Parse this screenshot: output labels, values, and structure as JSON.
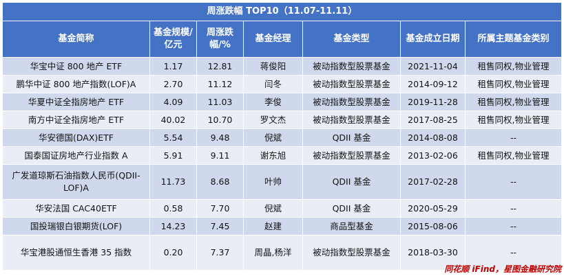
{
  "table": {
    "title": "周涨跌幅 TOP10（11.07-11.11）",
    "headers": [
      "基金简称",
      "基金规模/亿元",
      "周涨跌幅/%",
      "基金经理",
      "基金类型",
      "基金成立日期",
      "所属主题基金类别"
    ],
    "rows": [
      [
        "华宝中证 800 地产 ETF",
        "1.17",
        "12.81",
        "蒋俊阳",
        "被动指数型股票基金",
        "2021-11-04",
        "租售同权,物业管理"
      ],
      [
        "鹏华中证 800 地产指数(LOF)A",
        "2.70",
        "11.12",
        "闫冬",
        "被动指数型股票基金",
        "2014-09-12",
        "租售同权,物业管理"
      ],
      [
        "华夏中证全指房地产 ETF",
        "4.09",
        "11.03",
        "李俊",
        "被动指数型股票基金",
        "2019-11-28",
        "租售同权,物业管理"
      ],
      [
        "南方中证全指房地产 ETF",
        "40.02",
        "10.70",
        "罗文杰",
        "被动指数型股票基金",
        "2017-08-25",
        "租售同权,物业管理"
      ],
      [
        "华安德国(DAX)ETF",
        "5.54",
        "9.48",
        "倪斌",
        "QDII 基金",
        "2014-08-08",
        "--"
      ],
      [
        "国泰国证房地产行业指数 A",
        "5.91",
        "9.11",
        "谢东旭",
        "被动指数型股票基金",
        "2013-02-06",
        "租售同权,物业管理"
      ],
      [
        "广发道琼斯石油指数人民币(QDII-LOF)A",
        "11.73",
        "8.68",
        "叶帅",
        "QDII 基金",
        "2017-02-28",
        "--"
      ],
      [
        "华安法国 CAC40ETF",
        "0.58",
        "7.70",
        "倪斌",
        "QDII 基金",
        "2020-05-29",
        "--"
      ],
      [
        "国投瑞银白银期货(LOF)",
        "14.23",
        "7.45",
        "赵建",
        "商品型基金",
        "2015-08-06",
        "--"
      ],
      [
        "华宝港股通恒生香港 35 指数",
        "0.20",
        "7.37",
        "周晶,杨洋",
        "被动指数型股票基金",
        "2018-03-30",
        "--"
      ]
    ]
  },
  "source": "同花顺 iFind，星图金融研究院"
}
